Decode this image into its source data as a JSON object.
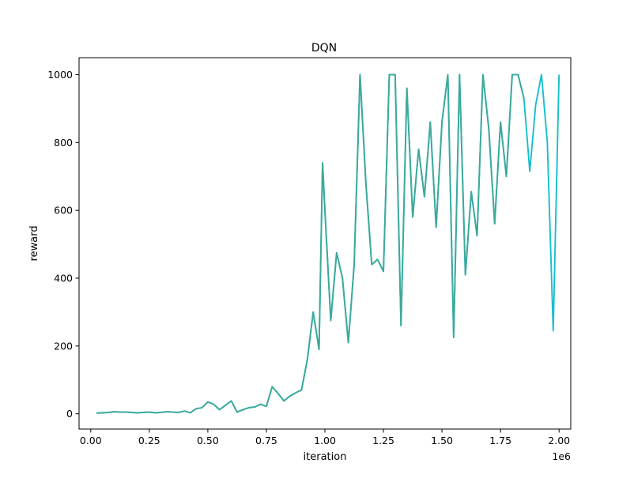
{
  "chart_data": {
    "type": "line",
    "title": "DQN",
    "xlabel": "iteration",
    "ylabel": "reward",
    "x_offset_label": "1e6",
    "xlim": [
      -0.05,
      2.05
    ],
    "ylim": [
      -45,
      1050
    ],
    "x_ticks": [
      0.0,
      0.25,
      0.5,
      0.75,
      1.0,
      1.25,
      1.5,
      1.75,
      2.0
    ],
    "x_tick_labels": [
      "0.00",
      "0.25",
      "0.50",
      "0.75",
      "1.00",
      "1.25",
      "1.50",
      "1.75",
      "2.00"
    ],
    "y_ticks": [
      0,
      200,
      400,
      600,
      800,
      1000
    ],
    "y_tick_labels": [
      "0",
      "200",
      "400",
      "600",
      "800",
      "1000"
    ],
    "grid": false,
    "series": [
      {
        "color": "#17becf",
        "x": [
          0.025,
          0.05,
          0.075,
          0.1,
          0.125,
          0.15,
          0.175,
          0.2,
          0.225,
          0.25,
          0.275,
          0.3,
          0.325,
          0.35,
          0.375,
          0.4,
          0.425,
          0.45,
          0.475,
          0.5,
          0.525,
          0.55,
          0.575,
          0.6,
          0.625,
          0.65,
          0.675,
          0.7,
          0.725,
          0.75,
          0.775,
          0.8,
          0.825,
          0.85,
          0.875,
          0.9,
          0.925,
          0.95,
          0.975,
          0.99,
          1.0,
          1.025,
          1.05,
          1.075,
          1.1,
          1.125,
          1.15,
          1.175,
          1.2,
          1.225,
          1.25,
          1.275,
          1.3,
          1.325,
          1.35,
          1.375,
          1.4,
          1.425,
          1.45,
          1.475,
          1.5,
          1.525,
          1.55,
          1.575,
          1.6,
          1.625,
          1.65,
          1.675,
          1.7,
          1.725,
          1.75,
          1.775,
          1.8,
          1.825,
          1.85,
          1.875,
          1.9,
          1.925,
          1.95,
          1.975,
          2.0
        ],
        "y": [
          2,
          3,
          4,
          6,
          5,
          5,
          4,
          3,
          4,
          5,
          3,
          4,
          6,
          5,
          4,
          8,
          3,
          15,
          18,
          35,
          28,
          12,
          25,
          38,
          5,
          12,
          18,
          20,
          28,
          22,
          80,
          60,
          38,
          52,
          62,
          70,
          160,
          300,
          190,
          740,
          600,
          275,
          475,
          400,
          210,
          440,
          1000,
          680,
          440,
          455,
          420,
          1000,
          1000,
          260,
          960,
          580,
          780,
          640,
          860,
          550,
          860,
          1000,
          225,
          1000,
          410,
          655,
          525,
          1000,
          840,
          560,
          860,
          700,
          1000,
          1000,
          930,
          715,
          910,
          1000,
          800,
          245,
          1000
        ]
      },
      {
        "color": "#3ea99a",
        "x": [
          0.025,
          0.05,
          0.075,
          0.1,
          0.125,
          0.15,
          0.175,
          0.2,
          0.225,
          0.25,
          0.275,
          0.3,
          0.325,
          0.35,
          0.375,
          0.4,
          0.425,
          0.45,
          0.475,
          0.5,
          0.525,
          0.55,
          0.575,
          0.6,
          0.625,
          0.65,
          0.675,
          0.7,
          0.725,
          0.75,
          0.775,
          0.8,
          0.825,
          0.85,
          0.875,
          0.9,
          0.925,
          0.95,
          0.975,
          0.99,
          1.0,
          1.025,
          1.05,
          1.075,
          1.1,
          1.125,
          1.15,
          1.175,
          1.2,
          1.225,
          1.25,
          1.275,
          1.3,
          1.325,
          1.35,
          1.375,
          1.4,
          1.425,
          1.45,
          1.475,
          1.5,
          1.525,
          1.55,
          1.575,
          1.6,
          1.625,
          1.65,
          1.675,
          1.7,
          1.725,
          1.75,
          1.775,
          1.8,
          1.825,
          1.85
        ],
        "y": [
          2,
          3,
          4,
          6,
          5,
          5,
          4,
          3,
          4,
          5,
          3,
          4,
          6,
          5,
          4,
          8,
          3,
          15,
          18,
          35,
          28,
          12,
          25,
          38,
          5,
          12,
          18,
          20,
          28,
          22,
          80,
          60,
          38,
          52,
          62,
          70,
          160,
          300,
          190,
          740,
          600,
          275,
          475,
          400,
          210,
          440,
          1000,
          680,
          440,
          455,
          420,
          1000,
          1000,
          260,
          960,
          580,
          780,
          640,
          860,
          550,
          860,
          1000,
          225,
          1000,
          410,
          655,
          525,
          1000,
          840,
          560,
          860,
          700,
          1000,
          1000,
          930
        ]
      }
    ]
  }
}
